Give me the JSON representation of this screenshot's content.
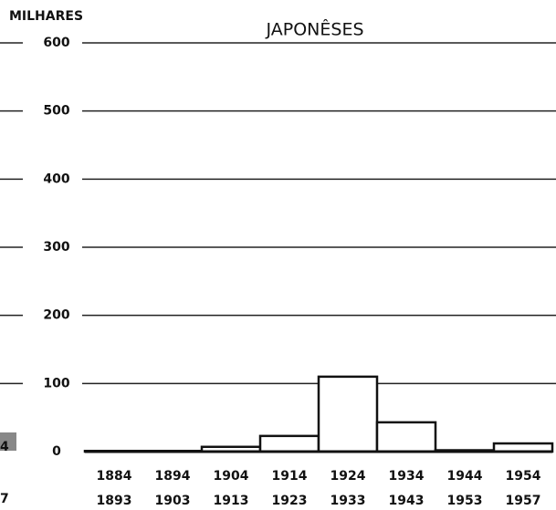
{
  "chart_data": {
    "type": "bar",
    "title": "JAPONÊSES",
    "y_label": "MILHARES",
    "categories": [
      [
        "1884",
        "1893"
      ],
      [
        "1894",
        "1903"
      ],
      [
        "1904",
        "1913"
      ],
      [
        "1914",
        "1923"
      ],
      [
        "1924",
        "1933"
      ],
      [
        "1934",
        "1943"
      ],
      [
        "1944",
        "1953"
      ],
      [
        "1954",
        "1957"
      ]
    ],
    "values": [
      1,
      1,
      7,
      23,
      110,
      43,
      2,
      12
    ],
    "color": "#ffffff",
    "ylim": [
      0,
      600
    ],
    "yticks": [
      0,
      100,
      200,
      300,
      400,
      500,
      600
    ],
    "grid": true
  },
  "fragment_labels": [
    "4",
    "7"
  ]
}
